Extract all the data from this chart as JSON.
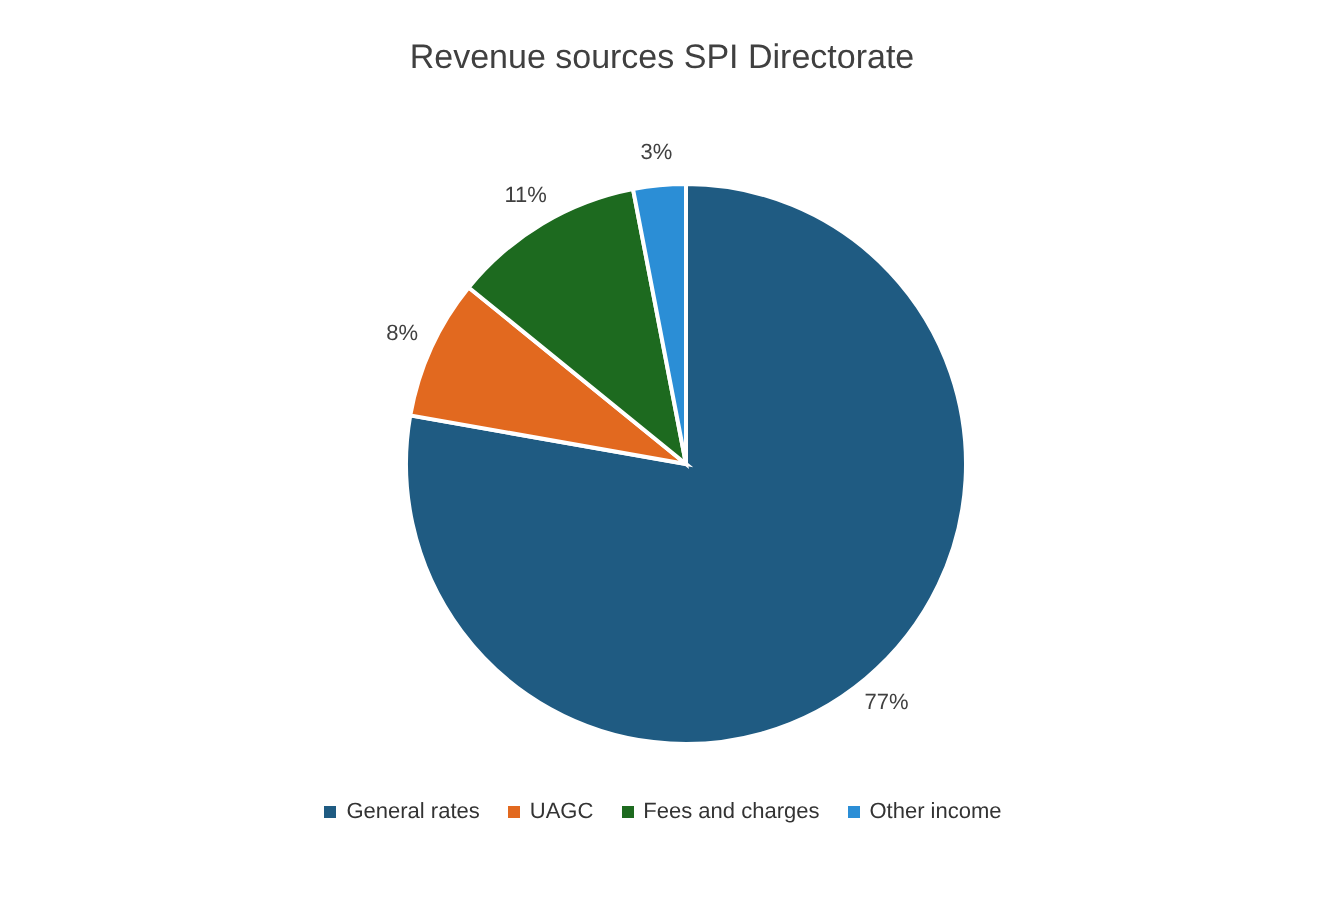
{
  "chart_data": {
    "type": "pie",
    "title": "Revenue sources SPI Directorate",
    "categories": [
      "General rates",
      "UAGC",
      "Fees and charges",
      "Other income"
    ],
    "values": [
      77,
      8,
      11,
      3
    ],
    "colors": [
      "#1f5b82",
      "#e2691f",
      "#1d6a1f",
      "#2b8ed6"
    ],
    "value_labels": [
      "77%",
      "8%",
      "11%",
      "3%"
    ],
    "legend": "bottom"
  }
}
